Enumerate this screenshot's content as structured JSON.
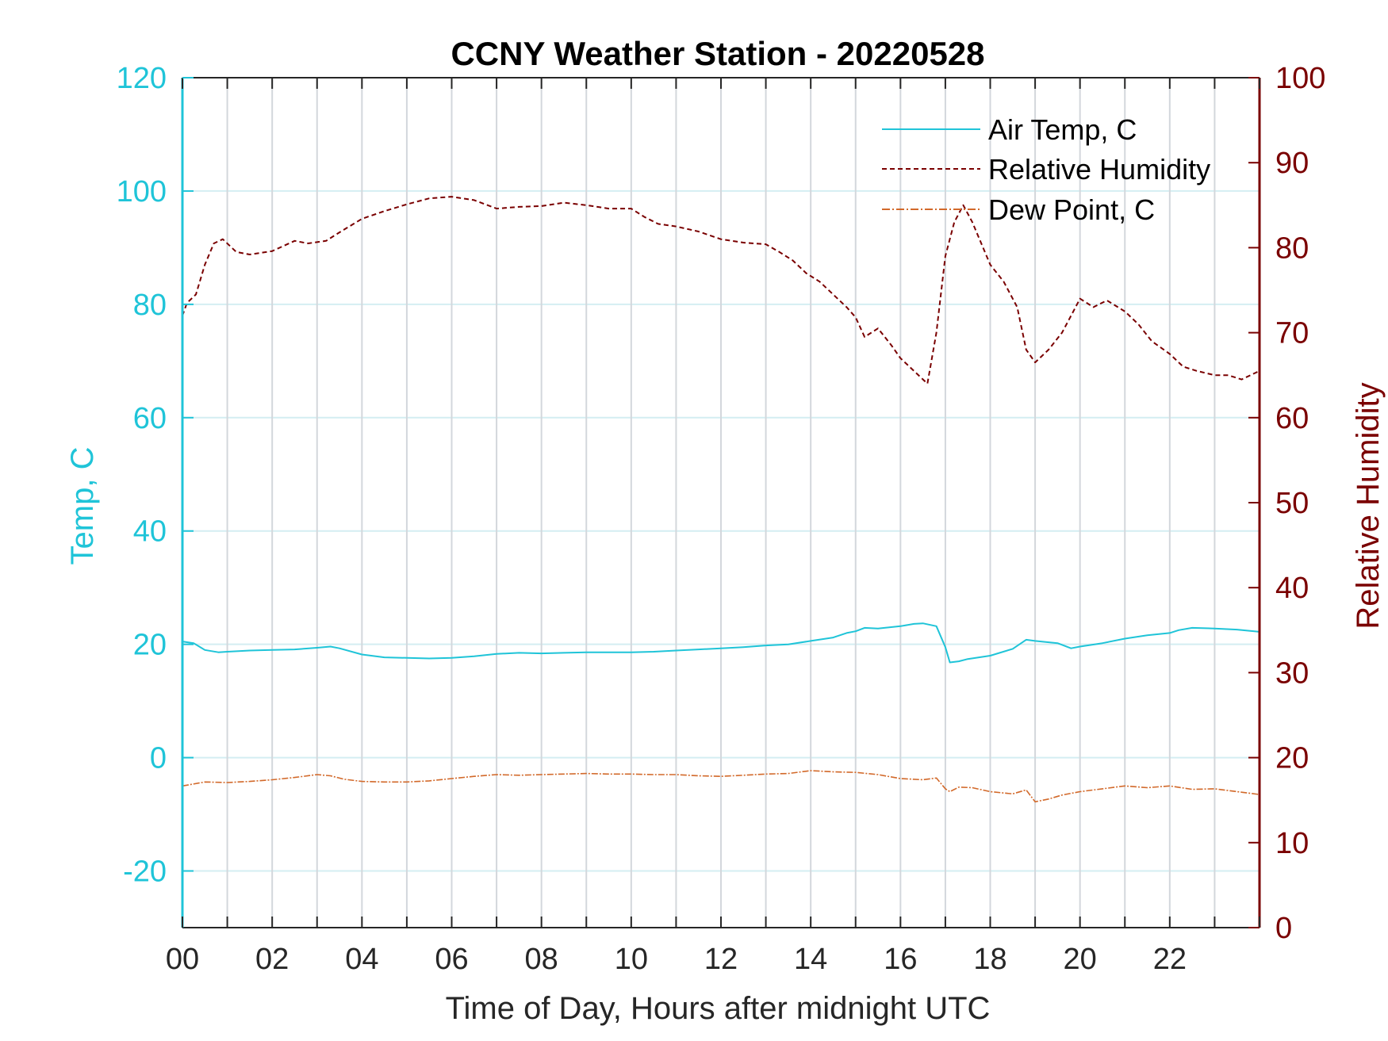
{
  "chart_data": {
    "type": "line",
    "title": "CCNY Weather Station - 20220528",
    "xlabel": "Time of Day, Hours after midnight UTC",
    "ylabel_left": "Temp, C",
    "ylabel_right": "Relative Humidity",
    "xlim": [
      0,
      24
    ],
    "ylim_left": [
      -30,
      120
    ],
    "ylim_right": [
      0,
      100
    ],
    "x_ticks": [
      0,
      2,
      4,
      6,
      8,
      10,
      12,
      14,
      16,
      18,
      20,
      22
    ],
    "x_tick_labels": [
      "00",
      "02",
      "04",
      "06",
      "08",
      "10",
      "12",
      "14",
      "16",
      "18",
      "20",
      "22"
    ],
    "y_left_ticks": [
      -20,
      0,
      20,
      40,
      60,
      80,
      100,
      120
    ],
    "y_left_tick_labels": [
      "-20",
      "0",
      "20",
      "40",
      "60",
      "80",
      "100",
      "120"
    ],
    "y_right_ticks": [
      0,
      10,
      20,
      30,
      40,
      50,
      60,
      70,
      80,
      90,
      100
    ],
    "y_right_tick_labels": [
      "0",
      "10",
      "20",
      "30",
      "40",
      "50",
      "60",
      "70",
      "80",
      "90",
      "100"
    ],
    "grid": true,
    "legend_position": "top-right",
    "colors": {
      "temp": "#1fc4d8",
      "rh": "#7a0000",
      "dew": "#d2692a",
      "hgrid": "#d4eef2",
      "vgrid": "#d3d7dc",
      "axis": "#262626"
    },
    "series": [
      {
        "name": "Air Temp, C",
        "axis": "left",
        "style": "solid",
        "x": [
          0,
          0.25,
          0.5,
          0.8,
          1,
          1.5,
          2,
          2.5,
          3,
          3.3,
          3.5,
          4,
          4.5,
          5,
          5.5,
          6,
          6.5,
          7,
          7.5,
          8,
          8.5,
          9,
          9.5,
          10,
          10.5,
          11,
          11.5,
          12,
          12.5,
          13,
          13.5,
          14,
          14.5,
          14.8,
          15,
          15.2,
          15.5,
          16,
          16.3,
          16.5,
          16.8,
          17,
          17.1,
          17.3,
          17.5,
          18,
          18.5,
          18.8,
          19,
          19.5,
          19.8,
          20,
          20.5,
          21,
          21.5,
          22,
          22.2,
          22.5,
          23,
          23.5,
          24
        ],
        "values": [
          20.5,
          20.2,
          19.0,
          18.6,
          18.7,
          18.9,
          19.0,
          19.1,
          19.4,
          19.6,
          19.3,
          18.2,
          17.7,
          17.6,
          17.5,
          17.6,
          17.9,
          18.3,
          18.5,
          18.4,
          18.5,
          18.6,
          18.6,
          18.6,
          18.7,
          18.9,
          19.1,
          19.3,
          19.5,
          19.8,
          20.0,
          20.6,
          21.2,
          22.0,
          22.3,
          22.9,
          22.8,
          23.2,
          23.6,
          23.7,
          23.2,
          19.5,
          16.8,
          17.0,
          17.4,
          18.0,
          19.2,
          20.8,
          20.6,
          20.2,
          19.3,
          19.6,
          20.2,
          21.0,
          21.6,
          22.0,
          22.5,
          22.9,
          22.8,
          22.6,
          22.2
        ]
      },
      {
        "name": "Relative Humidity",
        "axis": "right",
        "style": "dashed",
        "x": [
          0,
          0.1,
          0.3,
          0.5,
          0.7,
          0.9,
          1.2,
          1.5,
          2,
          2.5,
          2.8,
          3.2,
          3.5,
          4,
          4.5,
          5,
          5.5,
          6,
          6.5,
          7,
          7.5,
          8,
          8.5,
          9,
          9.5,
          10,
          10.3,
          10.6,
          11,
          11.5,
          12,
          12.5,
          13,
          13.3,
          13.6,
          13.9,
          14.2,
          14.5,
          14.8,
          15.0,
          15.2,
          15.5,
          15.8,
          16.0,
          16.3,
          16.6,
          16.8,
          17.0,
          17.2,
          17.4,
          17.6,
          18.0,
          18.3,
          18.6,
          18.8,
          19.0,
          19.3,
          19.6,
          19.8,
          20.0,
          20.3,
          20.6,
          21.0,
          21.3,
          21.6,
          22.0,
          22.3,
          22.6,
          23.0,
          23.3,
          23.6,
          24.0
        ],
        "values": [
          72.0,
          73.5,
          74.5,
          78.0,
          80.5,
          81.0,
          79.5,
          79.2,
          79.6,
          80.8,
          80.5,
          80.8,
          81.8,
          83.4,
          84.3,
          85.1,
          85.8,
          86.0,
          85.6,
          84.6,
          84.8,
          84.9,
          85.3,
          85.0,
          84.6,
          84.6,
          83.6,
          82.8,
          82.5,
          81.9,
          81.0,
          80.6,
          80.4,
          79.5,
          78.5,
          77.0,
          76.0,
          74.5,
          73.0,
          71.8,
          69.5,
          70.5,
          68.5,
          67.0,
          65.5,
          64.0,
          70.0,
          79.0,
          83.0,
          85.0,
          83.0,
          78.0,
          76.0,
          73.0,
          68.0,
          66.5,
          68.0,
          70.0,
          72.0,
          74.0,
          73.0,
          73.8,
          72.5,
          71.0,
          69.0,
          67.5,
          66.0,
          65.5,
          65.0,
          65.0,
          64.5,
          65.5
        ]
      },
      {
        "name": "Dew Point, C",
        "axis": "left",
        "style": "dash-dot",
        "x": [
          0,
          0.5,
          1,
          1.5,
          2,
          2.5,
          3,
          3.3,
          3.6,
          4,
          4.5,
          5,
          5.5,
          6,
          6.5,
          7,
          7.5,
          8,
          8.5,
          9,
          9.5,
          10,
          10.5,
          11,
          11.5,
          12,
          12.5,
          13,
          13.5,
          14,
          14.5,
          15,
          15.5,
          16,
          16.5,
          16.8,
          17.0,
          17.1,
          17.3,
          17.6,
          18,
          18.5,
          18.8,
          19.0,
          19.3,
          19.6,
          20,
          20.5,
          21,
          21.5,
          22,
          22.5,
          23,
          23.5,
          24
        ],
        "values": [
          -5.0,
          -4.3,
          -4.4,
          -4.2,
          -3.9,
          -3.5,
          -3.0,
          -3.2,
          -3.8,
          -4.2,
          -4.3,
          -4.3,
          -4.1,
          -3.7,
          -3.3,
          -3.0,
          -3.1,
          -3.0,
          -2.9,
          -2.8,
          -2.9,
          -2.9,
          -3.0,
          -3.0,
          -3.2,
          -3.3,
          -3.1,
          -2.9,
          -2.8,
          -2.3,
          -2.5,
          -2.6,
          -3.0,
          -3.7,
          -3.9,
          -3.6,
          -5.5,
          -6.0,
          -5.2,
          -5.3,
          -6.0,
          -6.4,
          -5.7,
          -7.8,
          -7.3,
          -6.6,
          -6.0,
          -5.5,
          -5.0,
          -5.3,
          -5.0,
          -5.6,
          -5.5,
          -6.0,
          -6.5
        ]
      }
    ]
  }
}
